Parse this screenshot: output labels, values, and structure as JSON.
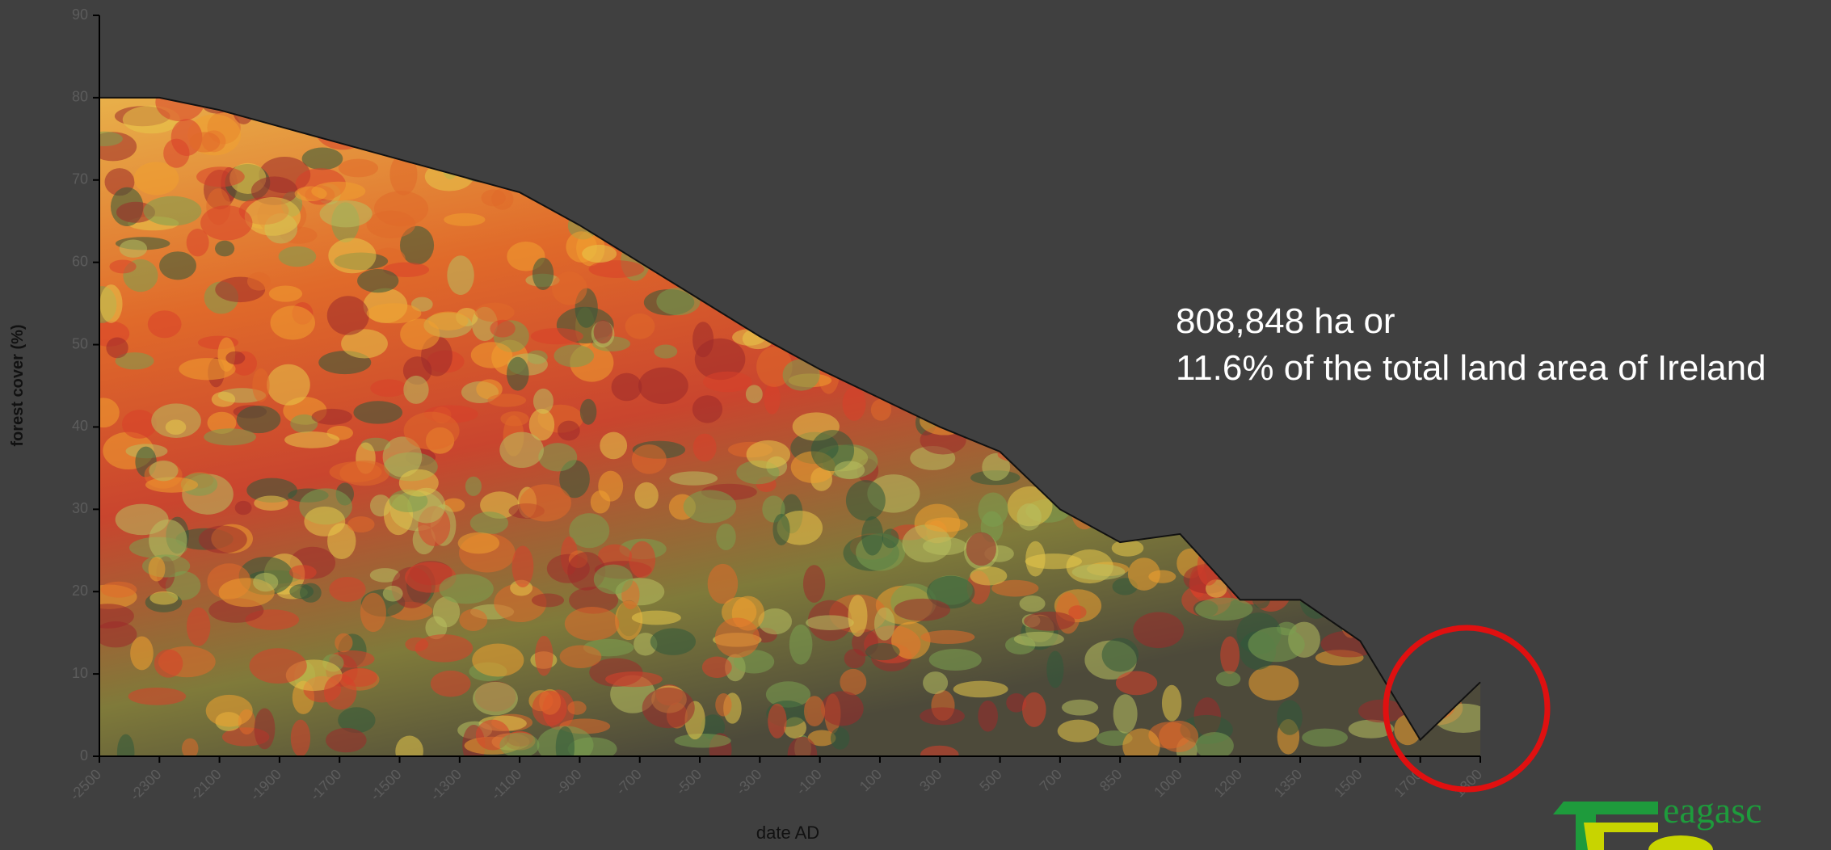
{
  "chart_data": {
    "type": "area",
    "y_label": "forest cover (%)",
    "x_label": "date AD",
    "annotations": [
      "808,848 ha or",
      "11.6% of the total land area of Ireland"
    ],
    "logo": "eagasc",
    "categories": [
      "-2500",
      "-2300",
      "-2100",
      "-1900",
      "-1700",
      "-1500",
      "-1300",
      "-1100",
      "-900",
      "-700",
      "-500",
      "-300",
      "-100",
      "100",
      "300",
      "500",
      "700",
      "850",
      "1000",
      "1200",
      "1350",
      "1500",
      "1700",
      "1800"
    ],
    "values": [
      80,
      80,
      78.5,
      76.5,
      74.5,
      72.5,
      70.5,
      68.5,
      64.5,
      60,
      55.5,
      51,
      47,
      43.5,
      40,
      37,
      30,
      26,
      27,
      19,
      19,
      14,
      2,
      9
    ],
    "ylim": [
      0,
      90
    ],
    "yticks": [
      0,
      10,
      20,
      30,
      40,
      50,
      60,
      70,
      80,
      90
    ]
  }
}
